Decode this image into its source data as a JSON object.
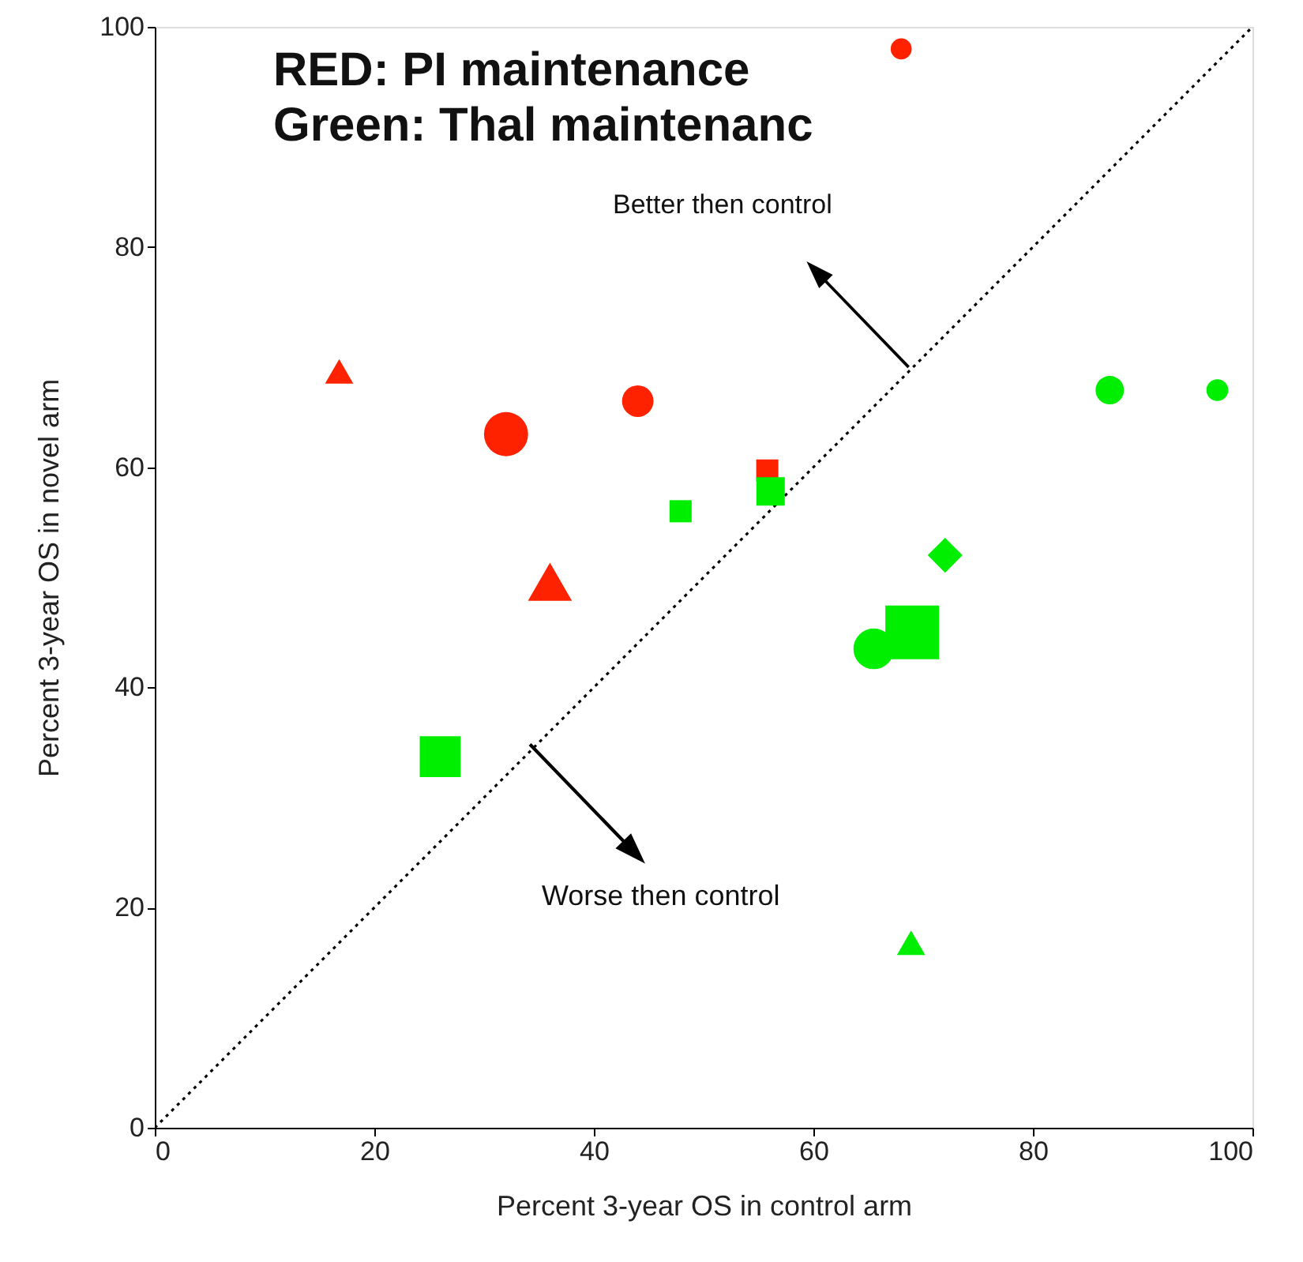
{
  "chart_data": {
    "type": "bubble",
    "xlabel": "Percent 3-year OS in control arm",
    "ylabel": "Percent 3-year OS in novel arm",
    "annotations": [
      "RED: PI maintenance",
      "Green: Thal maintenanc",
      "Better then control",
      "Worse then control"
    ],
    "xlim": [
      0,
      100
    ],
    "ylim": [
      0,
      100
    ],
    "xticks": [
      0,
      20,
      40,
      60,
      80,
      100
    ],
    "yticks": [
      0,
      20,
      40,
      60,
      80,
      100
    ],
    "grid": false,
    "series": [
      {
        "type": "line",
        "color": "#000000",
        "line_style": "dotted",
        "marker": "none",
        "x": [
          0,
          100
        ],
        "values": [
          0,
          100
        ]
      },
      {
        "color": "#ff2200",
        "marker": "circle",
        "x": [
          68,
          32,
          44
        ],
        "values": [
          98,
          63,
          66
        ],
        "sizes": [
          0.12,
          0.53,
          0.27
        ]
      },
      {
        "color": "#ff2200",
        "marker": "triangle",
        "x": [
          16.8,
          36
        ],
        "values": [
          68.7,
          49.6
        ],
        "sizes": [
          0.12,
          0.29
        ]
      },
      {
        "color": "#ff2200",
        "marker": "square",
        "x": [
          55.8
        ],
        "values": [
          59.7
        ],
        "sizes": [
          0.17
        ]
      },
      {
        "color": "#00ee00",
        "marker": "square",
        "x": [
          47.9,
          56.1,
          26,
          69
        ],
        "values": [
          56,
          57.8,
          33.7,
          45
        ],
        "sizes": [
          0.17,
          0.28,
          0.58,
          1
        ]
      },
      {
        "color": "#00ee00",
        "marker": "circle",
        "x": [
          87,
          96.8,
          65.5
        ],
        "values": [
          67,
          67,
          43.5
        ],
        "sizes": [
          0.22,
          0.13,
          0.45
        ]
      },
      {
        "color": "#00ee00",
        "marker": "diamond",
        "x": [
          72
        ],
        "values": [
          52
        ],
        "sizes": [
          0.21
        ]
      },
      {
        "color": "#00ee00",
        "marker": "triangle",
        "x": [
          68.9
        ],
        "values": [
          16.8
        ],
        "sizes": [
          0.12
        ]
      }
    ]
  }
}
